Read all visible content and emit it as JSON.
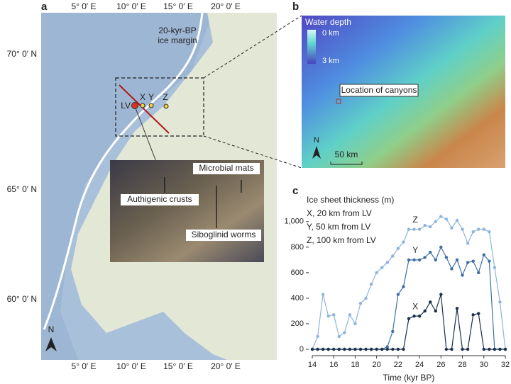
{
  "panel_a": {
    "label": "a",
    "longitudes": [
      "5° 0′ E",
      "10° 0′ E",
      "15° 0′ E",
      "20° 0′ E"
    ],
    "latitudes": [
      "70° 0′ N",
      "65° 0′ N",
      "60° 0′ N"
    ],
    "ice_margin": [
      "20-kyr-BP",
      "ice margin"
    ],
    "sites": [
      "LV",
      "X",
      "Y",
      "Z"
    ],
    "photo_labels": [
      "Microbial mats",
      "Authigenic crusts",
      "Siboglinid worms"
    ],
    "north": "N"
  },
  "panel_b": {
    "label": "b",
    "legend_title": "Water depth",
    "depth_labels": [
      "0 km",
      "3 km"
    ],
    "location": "Location of canyons",
    "north": "N",
    "scale_bar": "50 km"
  },
  "chart_data": {
    "type": "line",
    "panel_label": "c",
    "title": "Ice sheet thickness (m)",
    "x_label": "Time (kyr BP)",
    "annotations": [
      "X,  20 km from LV",
      "Y,  50 km from LV",
      "Z,  100 km from LV"
    ],
    "x": [
      14,
      14.5,
      15,
      15.5,
      16,
      16.5,
      17,
      17.5,
      18,
      18.5,
      19,
      19.5,
      20,
      20.5,
      21,
      21.5,
      22,
      22.5,
      23,
      23.5,
      24,
      24.5,
      25,
      25.5,
      26,
      26.5,
      27,
      27.5,
      28,
      28.5,
      29,
      29.5,
      30,
      30.5,
      31,
      31.5,
      32
    ],
    "series": [
      {
        "name": "Z",
        "color": "#8fb4dc",
        "values": [
          0,
          100,
          430,
          260,
          270,
          100,
          130,
          270,
          200,
          360,
          400,
          510,
          600,
          640,
          680,
          730,
          790,
          840,
          940,
          940,
          940,
          970,
          960,
          1000,
          1040,
          1020,
          950,
          1010,
          940,
          830,
          920,
          940,
          940,
          920,
          640,
          370,
          0
        ]
      },
      {
        "name": "Y",
        "color": "#3f6fa6",
        "values": [
          0,
          0,
          0,
          0,
          0,
          0,
          0,
          0,
          0,
          0,
          0,
          0,
          0,
          0,
          20,
          140,
          430,
          490,
          700,
          700,
          700,
          720,
          760,
          700,
          800,
          720,
          630,
          700,
          580,
          680,
          690,
          600,
          740,
          690,
          0,
          0,
          0
        ]
      },
      {
        "name": "X",
        "color": "#1b2f4d",
        "values": [
          0,
          0,
          0,
          0,
          0,
          0,
          0,
          0,
          0,
          0,
          0,
          0,
          0,
          0,
          0,
          0,
          0,
          0,
          240,
          260,
          260,
          300,
          370,
          300,
          430,
          0,
          0,
          320,
          0,
          0,
          270,
          280,
          0,
          0,
          0,
          0,
          0
        ]
      }
    ],
    "xlim": [
      14,
      32
    ],
    "xticks": [
      14,
      16,
      18,
      20,
      22,
      24,
      26,
      28,
      30,
      32
    ],
    "ylim": [
      0,
      1060
    ],
    "yticks": [
      0,
      200,
      400,
      600,
      800,
      {
        "value": 1000,
        "label": "1,000"
      }
    ]
  }
}
